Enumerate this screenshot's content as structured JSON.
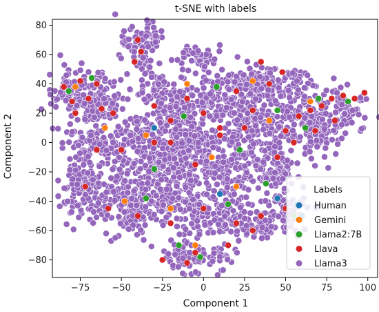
{
  "chart_data": {
    "type": "scatter",
    "title": "t-SNE with labels",
    "xlabel": "Component 1",
    "ylabel": "Component 2",
    "xlim": [
      -92,
      106
    ],
    "ylim": [
      -92,
      84
    ],
    "xticks": [
      -75,
      -50,
      -25,
      0,
      25,
      50,
      75,
      100
    ],
    "yticks": [
      -80,
      -60,
      -40,
      -20,
      0,
      20,
      40,
      60,
      80
    ],
    "grid": false,
    "legend": {
      "title": "Labels",
      "placement": "lower-right"
    },
    "series": [
      {
        "name": "Human",
        "color": "#1f77b4",
        "points": [
          [
            57,
            -42
          ],
          [
            45,
            -38
          ],
          [
            -30,
            10
          ],
          [
            10,
            -35
          ],
          [
            60,
            -50
          ]
        ]
      },
      {
        "name": "Gemini",
        "color": "#ff7f0e",
        "points": [
          [
            -78,
            38
          ],
          [
            -60,
            10
          ],
          [
            -35,
            5
          ],
          [
            -10,
            40
          ],
          [
            5,
            -10
          ],
          [
            20,
            -30
          ],
          [
            40,
            15
          ],
          [
            65,
            28
          ],
          [
            -20,
            -45
          ],
          [
            -5,
            -70
          ],
          [
            30,
            42
          ],
          [
            -48,
            -40
          ]
        ]
      },
      {
        "name": "Llama2:7B",
        "color": "#2ca02c",
        "points": [
          [
            -82,
            35
          ],
          [
            -68,
            44
          ],
          [
            -30,
            -18
          ],
          [
            -12,
            18
          ],
          [
            8,
            38
          ],
          [
            22,
            -5
          ],
          [
            45,
            22
          ],
          [
            70,
            30
          ],
          [
            88,
            28
          ],
          [
            -35,
            -38
          ],
          [
            -15,
            -70
          ],
          [
            15,
            -42
          ],
          [
            55,
            -50
          ],
          [
            -2,
            -78
          ],
          [
            38,
            -28
          ],
          [
            62,
            10
          ]
        ]
      },
      {
        "name": "Llava",
        "color": "#d62728",
        "points": [
          [
            -85,
            38
          ],
          [
            -80,
            28
          ],
          [
            -75,
            42
          ],
          [
            -70,
            30
          ],
          [
            -65,
            40
          ],
          [
            -78,
            20
          ],
          [
            -62,
            23
          ],
          [
            -40,
            70
          ],
          [
            -38,
            62
          ],
          [
            -42,
            55
          ],
          [
            -30,
            25
          ],
          [
            -20,
            15
          ],
          [
            -10,
            30
          ],
          [
            0,
            20
          ],
          [
            10,
            10
          ],
          [
            20,
            35
          ],
          [
            30,
            22
          ],
          [
            40,
            40
          ],
          [
            50,
            8
          ],
          [
            58,
            18
          ],
          [
            65,
            22
          ],
          [
            72,
            25
          ],
          [
            78,
            30
          ],
          [
            85,
            32
          ],
          [
            92,
            30
          ],
          [
            98,
            34
          ],
          [
            80,
            15
          ],
          [
            68,
            8
          ],
          [
            55,
            0
          ],
          [
            45,
            -10
          ],
          [
            -30,
            0
          ],
          [
            -50,
            -5
          ],
          [
            -65,
            -5
          ],
          [
            -72,
            -30
          ],
          [
            -58,
            -45
          ],
          [
            -40,
            -50
          ],
          [
            -20,
            -55
          ],
          [
            0,
            -45
          ],
          [
            20,
            -55
          ],
          [
            -25,
            -80
          ],
          [
            -10,
            -82
          ],
          [
            -5,
            -75
          ],
          [
            15,
            -70
          ],
          [
            30,
            -60
          ],
          [
            35,
            -50
          ],
          [
            50,
            -45
          ],
          [
            -20,
            0
          ],
          [
            -5,
            -15
          ],
          [
            10,
            5
          ],
          [
            25,
            10
          ],
          [
            -55,
            20
          ],
          [
            35,
            55
          ],
          [
            48,
            48
          ]
        ]
      },
      {
        "name": "Llama3",
        "color": "#9467bd",
        "points": []
      }
    ]
  }
}
